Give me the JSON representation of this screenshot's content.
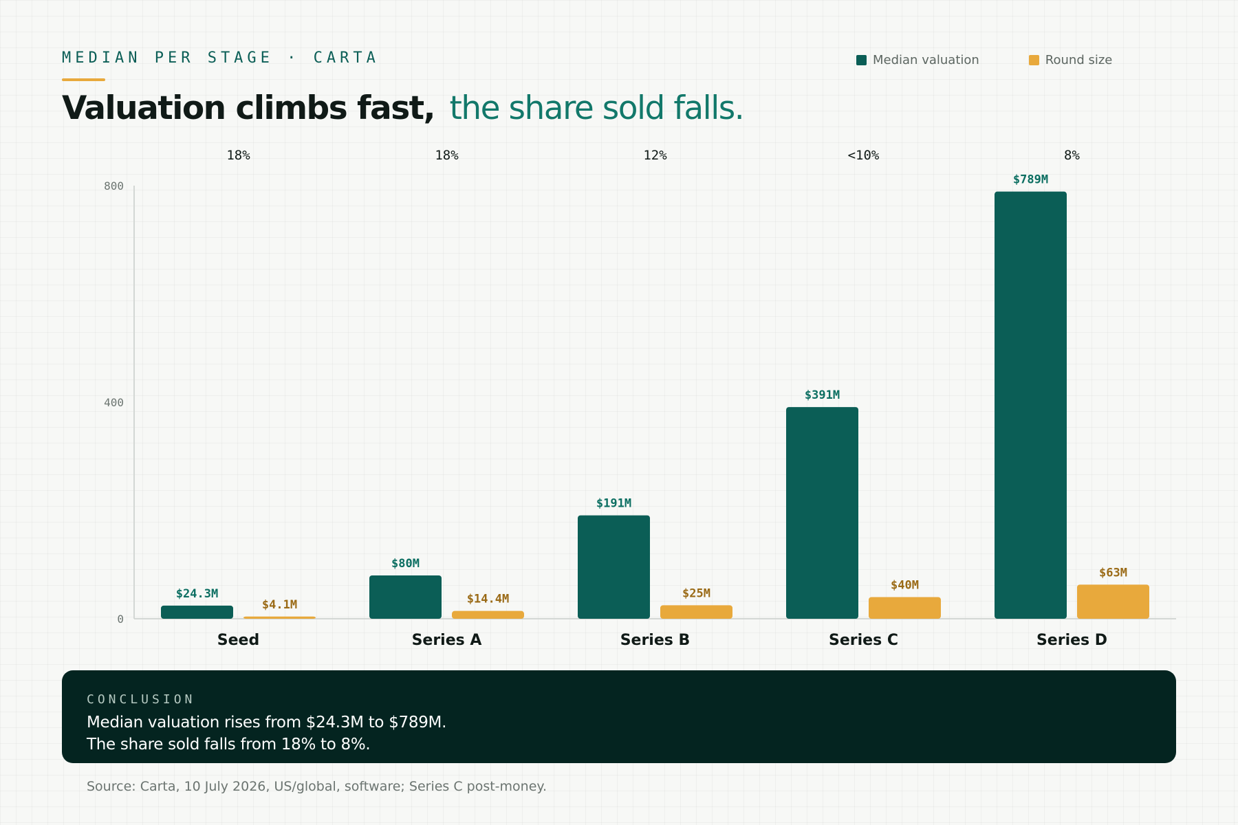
{
  "header": {
    "eyebrow": "MEDIAN PER STAGE · CARTA",
    "title_main": "Valuation climbs fast,",
    "title_accent": "the share sold falls."
  },
  "legend": [
    {
      "label": "Median valuation",
      "color": "#0b5e56"
    },
    {
      "label": "Round size",
      "color": "#e8a93c"
    }
  ],
  "chart_data": {
    "type": "bar",
    "categories": [
      "Seed",
      "Series A",
      "Series B",
      "Series C",
      "Series D"
    ],
    "series": [
      {
        "name": "Median valuation",
        "values": [
          24.3,
          80,
          191,
          391,
          789
        ],
        "labels": [
          "$24.3M",
          "$80M",
          "$191M",
          "$391M",
          "$789M"
        ],
        "color": "#0b5e56"
      },
      {
        "name": "Round size",
        "values": [
          4.1,
          14.4,
          25,
          40,
          63
        ],
        "labels": [
          "$4.1M",
          "$14.4M",
          "$25M",
          "$40M",
          "$63M"
        ],
        "color": "#e8a93c"
      }
    ],
    "share_sold": [
      "18%",
      "18%",
      "12%",
      "<10%",
      "8%"
    ],
    "yticks": [
      "0",
      "400",
      "800"
    ],
    "ylim": [
      0,
      800
    ],
    "grid": false,
    "legend_position": "top-right"
  },
  "conclusion": {
    "label": "CONCLUSION",
    "line1": "Median valuation rises from $24.3M to $789M.",
    "line2": "The share sold falls from 18% to 8%."
  },
  "source": "Source: Carta, 10 July 2026, US/global, software; Series C post-money."
}
